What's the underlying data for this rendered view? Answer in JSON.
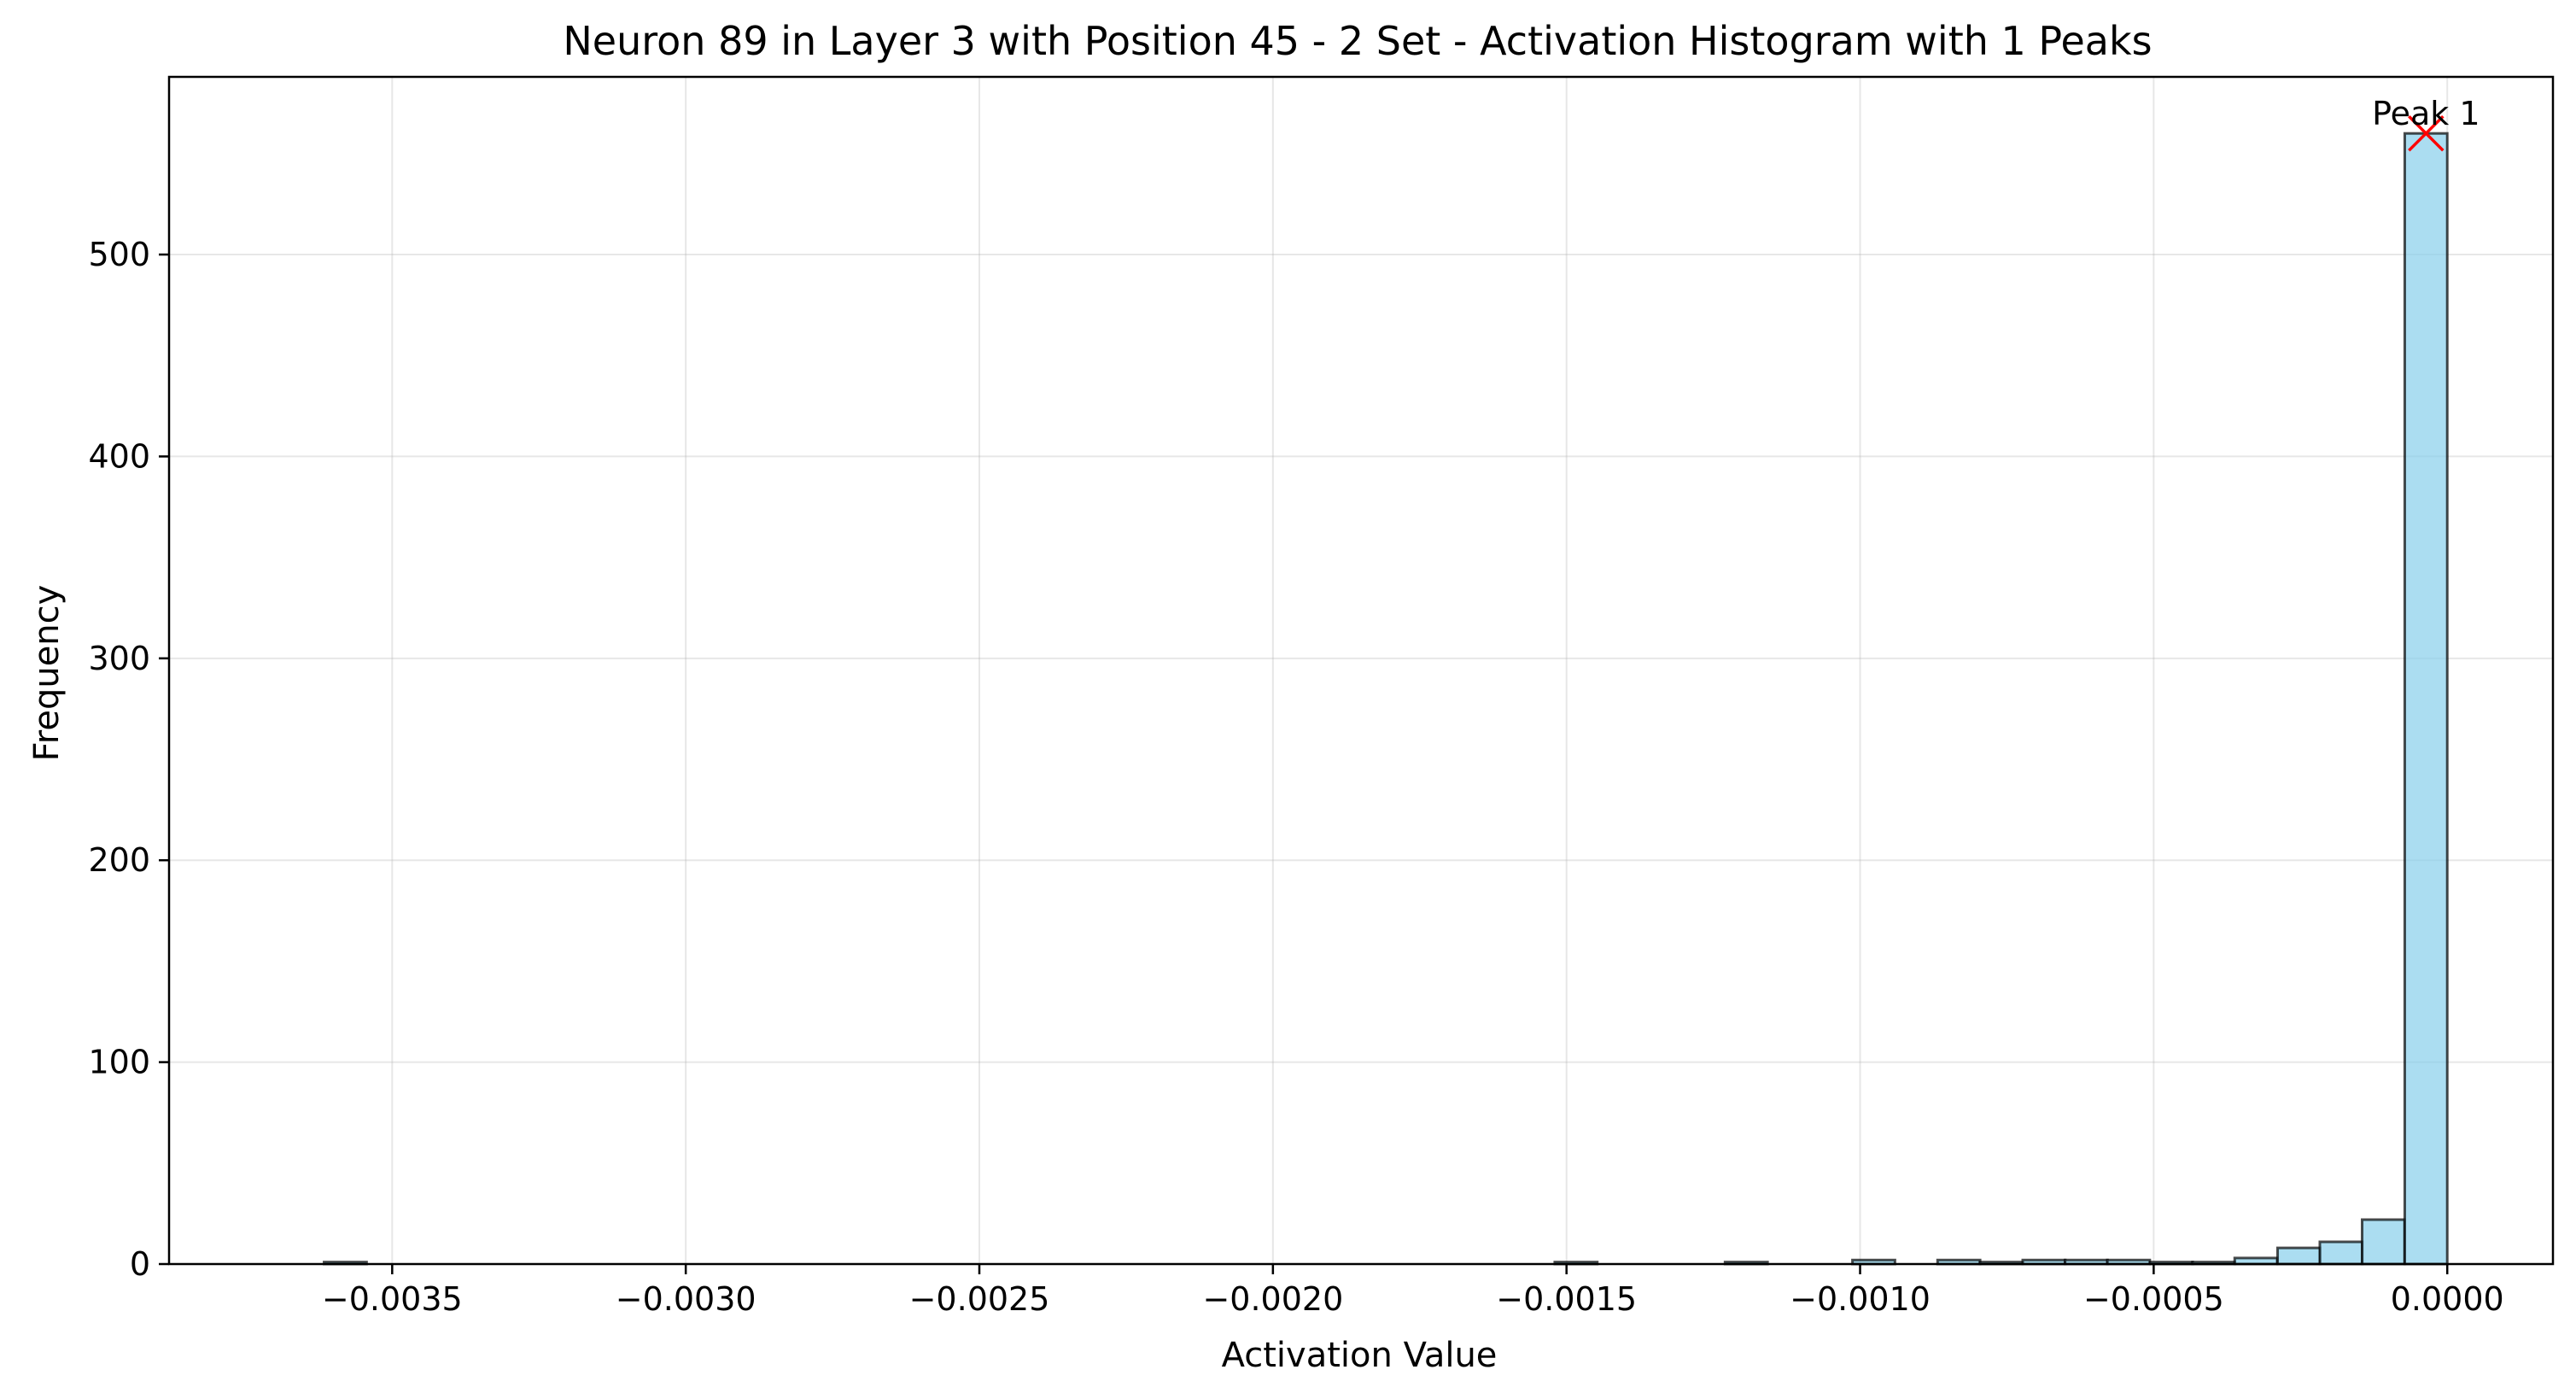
{
  "chart_data": {
    "type": "bar",
    "title": "Neuron 89 in Layer 3 with Position 45 - 2 Set - Activation Histogram with 1 Peaks",
    "xlabel": "Activation Value",
    "ylabel": "Frequency",
    "xlim": [
      -0.00388,
      0.00018
    ],
    "ylim": [
      0,
      588
    ],
    "xticks": [
      -0.0035,
      -0.003,
      -0.0025,
      -0.002,
      -0.0015,
      -0.001,
      -0.0005,
      0.0
    ],
    "xtick_labels": [
      "−0.0035",
      "−0.0030",
      "−0.0025",
      "−0.0020",
      "−0.0015",
      "−0.0010",
      "−0.0005",
      "0.0000"
    ],
    "yticks": [
      0,
      100,
      200,
      300,
      400,
      500
    ],
    "ytick_labels": [
      "0",
      "100",
      "200",
      "300",
      "400",
      "500"
    ],
    "grid": true,
    "bar_color": "#87ceeb",
    "peak_marker_color": "#ff0000",
    "bin_width": 7.24e-05,
    "bins": [
      {
        "x0": -0.003616,
        "count": 1
      },
      {
        "x0": -0.00152,
        "count": 1
      },
      {
        "x0": -0.00123,
        "count": 1
      },
      {
        "x0": -0.001013,
        "count": 2
      },
      {
        "x0": -0.000868,
        "count": 2
      },
      {
        "x0": -0.000796,
        "count": 1
      },
      {
        "x0": -0.000723,
        "count": 2
      },
      {
        "x0": -0.000651,
        "count": 2
      },
      {
        "x0": -0.000579,
        "count": 2
      },
      {
        "x0": -0.000506,
        "count": 1
      },
      {
        "x0": -0.000434,
        "count": 1
      },
      {
        "x0": -0.000362,
        "count": 3
      },
      {
        "x0": -0.000289,
        "count": 8
      },
      {
        "x0": -0.000217,
        "count": 11
      },
      {
        "x0": -0.000145,
        "count": 22
      },
      {
        "x0": -7.24e-05,
        "count": 560
      }
    ],
    "peaks": [
      {
        "label": "Peak 1",
        "x": -3.62e-05,
        "y": 560
      }
    ]
  }
}
